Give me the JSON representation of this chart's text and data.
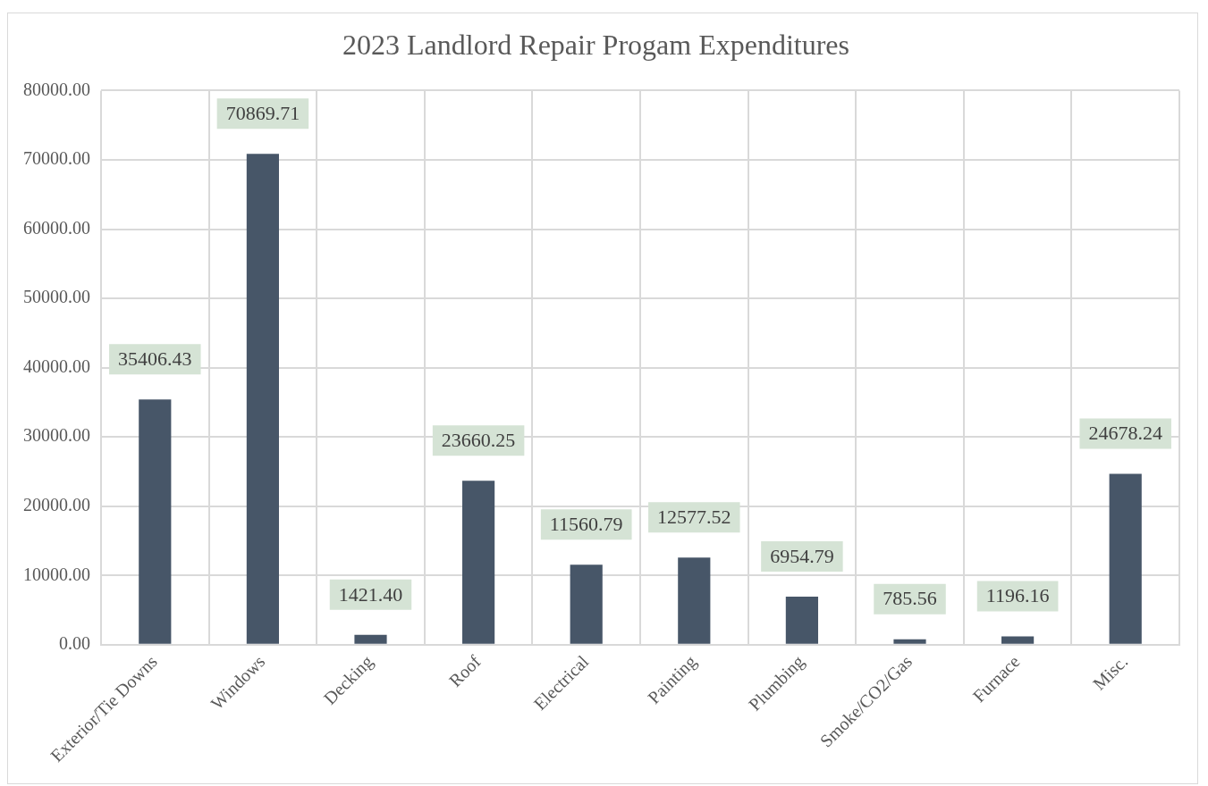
{
  "chart_data": {
    "type": "bar",
    "title": "2023 Landlord Repair Progam Expenditures",
    "categories": [
      "Exterior/Tie Downs",
      "Windows",
      "Decking",
      "Roof",
      "Electrical",
      "Painting",
      "Plumbing",
      "Smoke/CO2/Gas",
      "Furnace",
      "Misc."
    ],
    "values": [
      35406.43,
      70869.71,
      1421.4,
      23660.25,
      11560.79,
      12577.52,
      6954.79,
      785.56,
      1196.16,
      24678.24
    ],
    "value_labels": [
      "35406.43",
      "70869.71",
      "1421.40",
      "23660.25",
      "11560.79",
      "12577.52",
      "6954.79",
      "785.56",
      "1196.16",
      "24678.24"
    ],
    "color": "#475668",
    "ylim": [
      0,
      80000
    ],
    "yticks": [
      {
        "value": 0,
        "label": "0.00"
      },
      {
        "value": 10000,
        "label": "10000.00"
      },
      {
        "value": 20000,
        "label": "20000.00"
      },
      {
        "value": 30000,
        "label": "30000.00"
      },
      {
        "value": 40000,
        "label": "40000.00"
      },
      {
        "value": 50000,
        "label": "50000.00"
      },
      {
        "value": 60000,
        "label": "60000.00"
      },
      {
        "value": 70000,
        "label": "70000.00"
      },
      {
        "value": 80000,
        "label": "80000.00"
      }
    ],
    "grid": true
  }
}
